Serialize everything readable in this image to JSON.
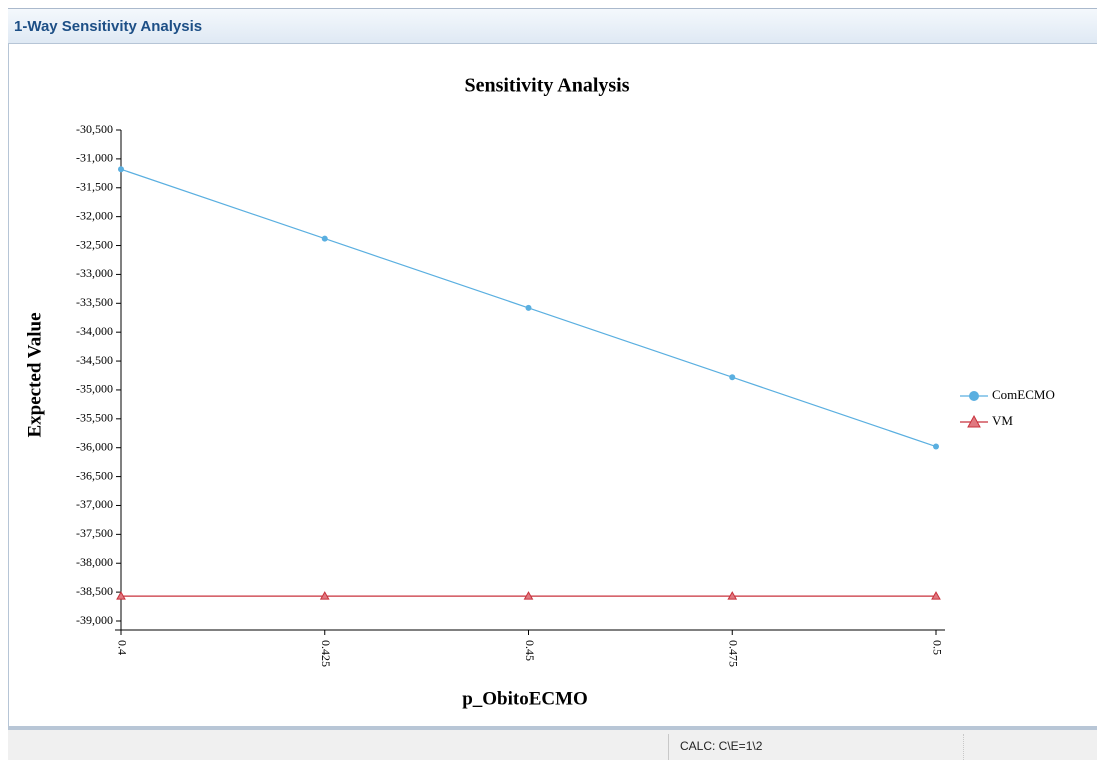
{
  "window": {
    "title": "1-Way Sensitivity Analysis"
  },
  "status_bar": {
    "text": "CALC: C\\E=1\\2"
  },
  "chart_data": {
    "type": "line",
    "title": "Sensitivity Analysis",
    "x_label": "p_ObitoECMO",
    "y_label": "Expected Value",
    "x": [
      0.4,
      0.425,
      0.45,
      0.475,
      0.5
    ],
    "xlim": [
      0.4,
      0.5
    ],
    "xticks": [
      0.4,
      0.425,
      0.45,
      0.475,
      0.5
    ],
    "ylim": [
      -39000,
      -30500
    ],
    "yticks": [
      {
        "value": -39000,
        "label": "-39,000"
      },
      {
        "value": -38500,
        "label": "-38,500"
      },
      {
        "value": -38000,
        "label": "-38,000"
      },
      {
        "value": -37500,
        "label": "-37,500"
      },
      {
        "value": -37000,
        "label": "-37,000"
      },
      {
        "value": -36500,
        "label": "-36,500"
      },
      {
        "value": -36000,
        "label": "-36,000"
      },
      {
        "value": -35500,
        "label": "-35,500"
      },
      {
        "value": -35000,
        "label": "-35,000"
      },
      {
        "value": -34500,
        "label": "-34,500"
      },
      {
        "value": -34000,
        "label": "-34,000"
      },
      {
        "value": -33500,
        "label": "-33,500"
      },
      {
        "value": -33000,
        "label": "-33,000"
      },
      {
        "value": -32500,
        "label": "-32,500"
      },
      {
        "value": -32000,
        "label": "-32,000"
      },
      {
        "value": -31500,
        "label": "-31,500"
      },
      {
        "value": -31000,
        "label": "-31,000"
      },
      {
        "value": -30500,
        "label": "-30,500"
      }
    ],
    "legend": "right",
    "series": [
      {
        "name": "ComECMO",
        "color": "#5aafe0",
        "marker": "circle",
        "values": [
          -31180,
          -32380,
          -33580,
          -34780,
          -35980
        ]
      },
      {
        "name": "VM",
        "color": "#c8323c",
        "marker": "triangle",
        "values": [
          -38570,
          -38570,
          -38570,
          -38570,
          -38570
        ]
      }
    ]
  }
}
